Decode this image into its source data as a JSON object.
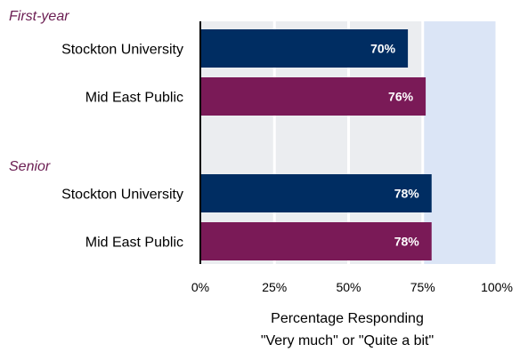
{
  "chart_data": {
    "type": "bar",
    "orientation": "horizontal",
    "groups": [
      {
        "label": "First-year",
        "bars": [
          {
            "category": "Stockton University",
            "value": 70,
            "label": "70%",
            "color": "#002d62"
          },
          {
            "category": "Mid East Public",
            "value": 76,
            "label": "76%",
            "color": "#7a1a57"
          }
        ]
      },
      {
        "label": "Senior",
        "bars": [
          {
            "category": "Stockton University",
            "value": 78,
            "label": "78%",
            "color": "#002d62"
          },
          {
            "category": "Mid East Public",
            "value": 78,
            "label": "78%",
            "color": "#7a1a57"
          }
        ]
      }
    ],
    "xlim": [
      0,
      100
    ],
    "ticks": [
      {
        "value": 0,
        "label": "0%"
      },
      {
        "value": 25,
        "label": "25%"
      },
      {
        "value": 50,
        "label": "50%"
      },
      {
        "value": 75,
        "label": "75%"
      },
      {
        "value": 100,
        "label": "100%"
      }
    ],
    "xlabel_line1": "Percentage Responding",
    "xlabel_line2": "\"Very much\" or \"Quite a bit\"",
    "shaded_band": [
      75,
      100
    ],
    "grid": true,
    "colors": {
      "stockton": "#002d62",
      "mid_east": "#7a1a57",
      "group_label": "#6b1d52",
      "band": "#dbe5f6",
      "plot_bg": "#ebedf0",
      "gridline": "#ffffff"
    }
  }
}
